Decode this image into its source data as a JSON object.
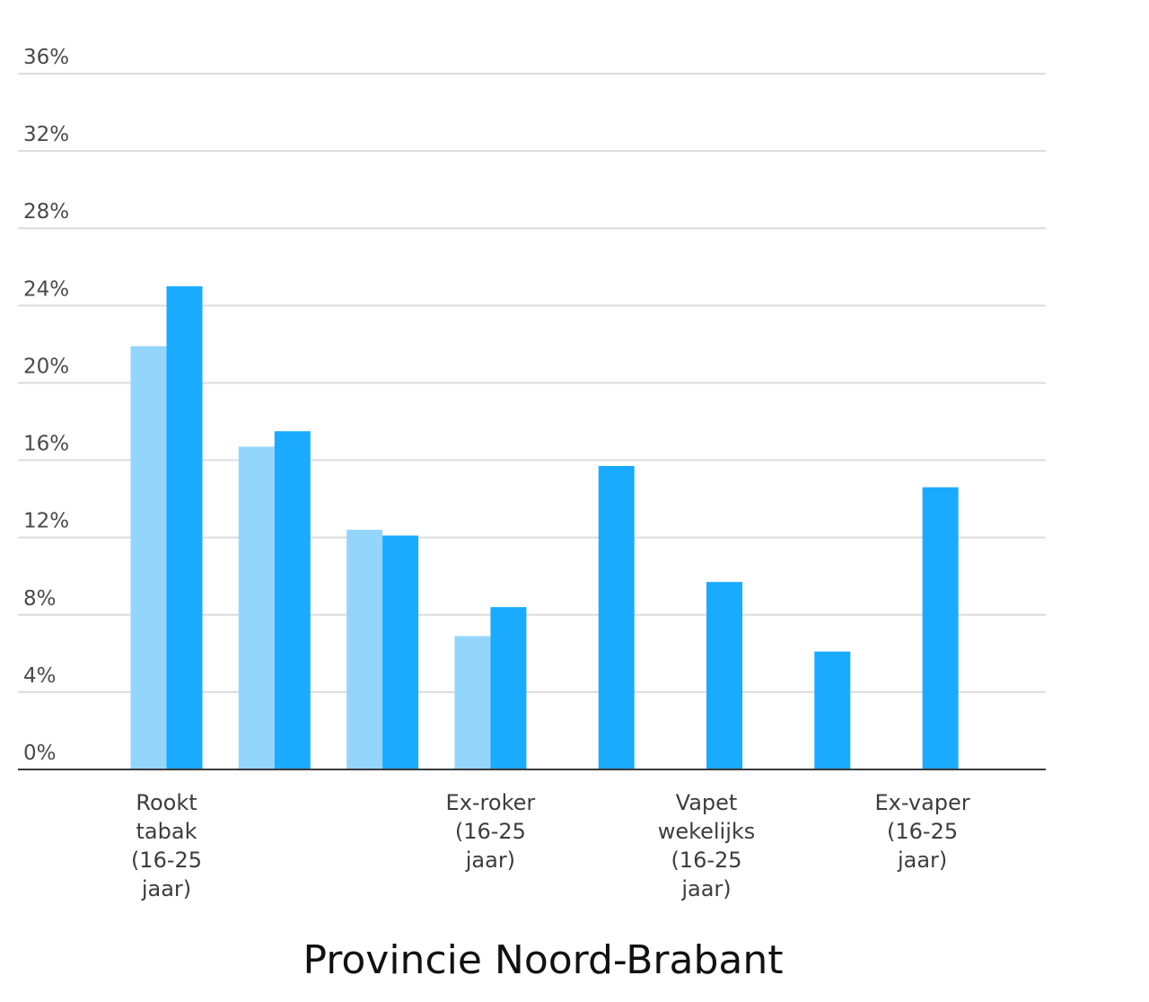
{
  "chart_data": {
    "type": "bar",
    "title": "Provincie Noord-Brabant",
    "ylim": [
      0,
      36
    ],
    "y_ticks": [
      "0%",
      "4%",
      "8%",
      "12%",
      "16%",
      "20%",
      "24%",
      "28%",
      "32%",
      "36%"
    ],
    "grid": true,
    "categories": [
      [
        "Rookt",
        "tabak",
        "(16-25",
        "jaar)"
      ],
      [],
      [],
      [
        "Ex-roker",
        "(16-25",
        "jaar)"
      ],
      [],
      [
        "Vapet",
        "wekelijks",
        "(16-25",
        "jaar)"
      ],
      [],
      [
        "Ex-vaper",
        "(16-25",
        "jaar)"
      ]
    ],
    "series": [
      {
        "values": [
          21.9,
          16.7,
          12.4,
          6.9,
          null,
          null,
          null,
          null
        ]
      },
      {
        "values": [
          25.0,
          17.5,
          12.1,
          8.4,
          15.7,
          9.7,
          6.1,
          14.6
        ]
      }
    ],
    "colors": [
      "#94d6fb",
      "#1aabff"
    ]
  }
}
